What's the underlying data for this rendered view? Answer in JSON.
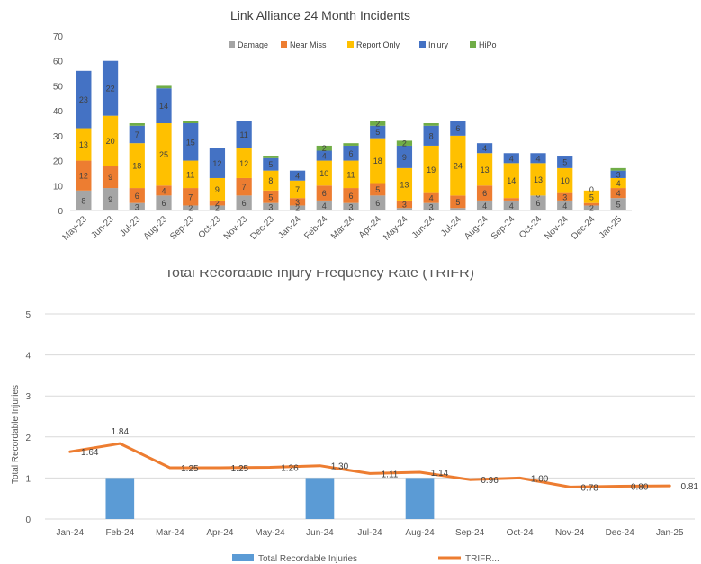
{
  "chart_data": [
    {
      "type": "bar",
      "stacked": true,
      "title": "Link Alliance 24 Month Incidents",
      "xlabel": "",
      "ylabel": "",
      "ylim": [
        0,
        70
      ],
      "yticks": [
        0,
        10,
        20,
        30,
        40,
        50,
        60,
        70
      ],
      "grid": false,
      "legend_position": "top",
      "categories": [
        "May-23",
        "Jun-23",
        "Jul-23",
        "Aug-23",
        "Sep-23",
        "Oct-23",
        "Nov-23",
        "Dec-23",
        "Jan-24",
        "Feb-24",
        "Mar-24",
        "Apr-24",
        "May-24",
        "Jun-24",
        "Jul-24",
        "Aug-24",
        "Sep-24",
        "Oct-24",
        "Nov-24",
        "Dec-24",
        "Jan-25"
      ],
      "series": [
        {
          "name": "Damage",
          "color": "#a5a5a5",
          "values": [
            8,
            9,
            3,
            6,
            2,
            2,
            6,
            3,
            2,
            4,
            3,
            6,
            1,
            3,
            1,
            4,
            4,
            6,
            4,
            2,
            5
          ]
        },
        {
          "name": "Near Miss",
          "color": "#ed7d31",
          "values": [
            12,
            9,
            6,
            4,
            7,
            2,
            7,
            5,
            3,
            6,
            6,
            5,
            3,
            4,
            5,
            6,
            1,
            0,
            3,
            1,
            4
          ]
        },
        {
          "name": "Report Only",
          "color": "#ffc000",
          "values": [
            13,
            20,
            18,
            25,
            11,
            9,
            12,
            8,
            7,
            10,
            11,
            18,
            13,
            19,
            24,
            13,
            14,
            13,
            10,
            5,
            4
          ]
        },
        {
          "name": "Injury",
          "color": "#4472c4",
          "values": [
            23,
            22,
            7,
            14,
            15,
            12,
            11,
            5,
            4,
            4,
            6,
            5,
            9,
            8,
            6,
            4,
            4,
            4,
            5,
            0,
            3
          ]
        },
        {
          "name": "HiPo",
          "color": "#70ad47",
          "values": [
            0,
            0,
            1,
            1,
            1,
            0,
            0,
            1,
            0,
            2,
            1,
            2,
            2,
            1,
            0,
            0,
            0,
            0,
            0,
            0,
            1
          ]
        }
      ]
    },
    {
      "type": "bar+line",
      "title": "Total Recordable Injury Frequency Rate (TRIFR)",
      "xlabel": "",
      "ylabel": "Total Recordable Injuries",
      "ylim": [
        0,
        5
      ],
      "yticks": [
        0,
        1,
        2,
        3,
        4,
        5
      ],
      "grid": true,
      "legend_position": "bottom",
      "categories": [
        "Jan-24",
        "Feb-24",
        "Mar-24",
        "Apr-24",
        "May-24",
        "Jun-24",
        "Jul-24",
        "Aug-24",
        "Sep-24",
        "Oct-24",
        "Nov-24",
        "Dec-24",
        "Jan-25"
      ],
      "series": [
        {
          "name": "Total Recordable Injuries",
          "kind": "bar",
          "color": "#5b9bd5",
          "values": [
            0,
            1,
            0,
            0,
            0,
            1,
            0,
            1,
            0,
            0,
            0,
            0,
            0
          ]
        },
        {
          "name": "TRIFR...",
          "kind": "line",
          "color": "#ed7d31",
          "values": [
            1.64,
            1.84,
            1.25,
            1.25,
            1.26,
            1.3,
            1.11,
            1.14,
            0.96,
            1.0,
            0.78,
            0.8,
            0.81
          ],
          "labels": [
            "1.64",
            "1.84",
            "1.25",
            "1.25",
            "1.26",
            "1.30",
            "1.11",
            "1.14",
            "0.96",
            "1.00",
            "0.78",
            "0.80",
            "0.81"
          ]
        }
      ]
    }
  ]
}
